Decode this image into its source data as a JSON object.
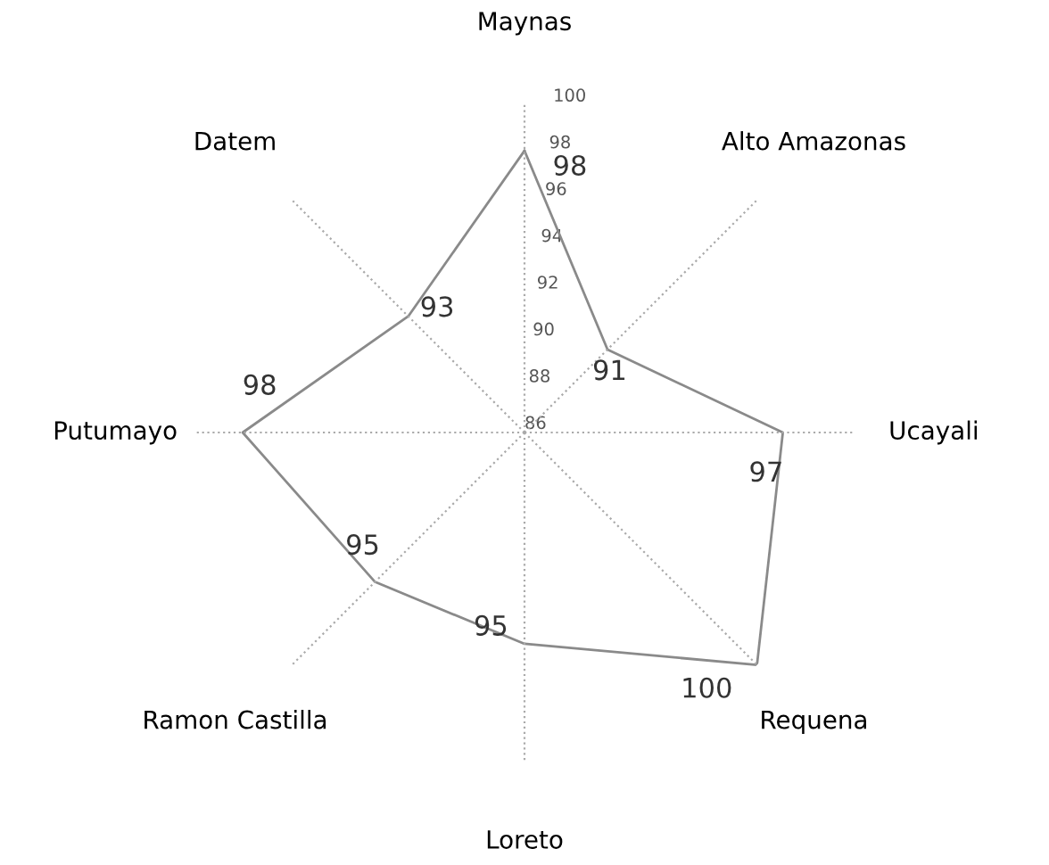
{
  "chart_data": {
    "type": "radar",
    "categories": [
      "Maynas",
      "Alto Amazonas",
      "Ucayali",
      "Requena",
      "Loreto",
      "Ramon Castilla",
      "Putumayo",
      "Datem"
    ],
    "series": [
      {
        "color": "#8a8a8a",
        "values": [
          98,
          91,
          97,
          100,
          95,
          95,
          98,
          93
        ]
      }
    ],
    "ylim": [
      86,
      100
    ],
    "yticks": [
      86,
      88,
      90,
      92,
      94,
      96,
      98,
      100
    ],
    "data_labels": true,
    "grid": false,
    "marker": "none",
    "line_style": "solid"
  }
}
